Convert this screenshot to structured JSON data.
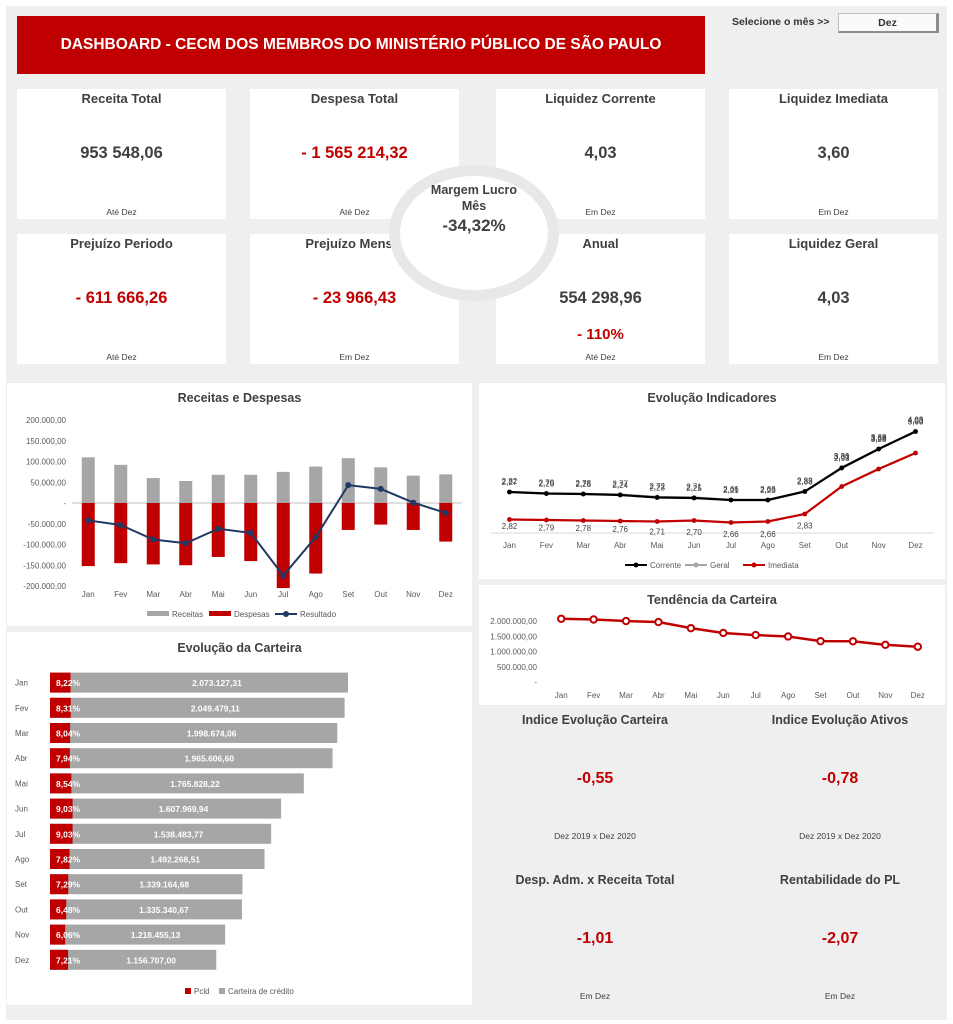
{
  "header": {
    "title": "DASHBOARD - CECM DOS MEMBROS DO MINISTÉRIO PÚBLICO DE SÃO PAULO",
    "month_label": "Selecione o mês >>",
    "month_value": "Dez"
  },
  "kpis": {
    "receita_total": {
      "title": "Receita Total",
      "value": "953 548,06",
      "sub": "Até Dez"
    },
    "despesa_total": {
      "title": "Despesa Total",
      "value": "- 1 565 214,32",
      "sub": "Até Dez"
    },
    "liquidez_corrente": {
      "title": "Liquidez Corrente",
      "value": "4,03",
      "sub": "Em Dez"
    },
    "liquidez_imediata": {
      "title": "Liquidez Imediata",
      "value": "3,60",
      "sub": "Em Dez"
    },
    "prejuizo_periodo": {
      "title": "Prejuízo Periodo",
      "value": "-  611 666,26",
      "sub": "Até Dez"
    },
    "prejuizo_mensal": {
      "title": "Prejuízo Mensal",
      "value": "-  23 966,43",
      "sub": "Em Dez"
    },
    "anual": {
      "title": "Anual",
      "value": "554 298,96",
      "extra": "- 110%",
      "sub": "Até Dez"
    },
    "liquidez_geral": {
      "title": "Liquidez Geral",
      "value": "4,03",
      "sub": "Em Dez"
    },
    "margem": {
      "title_line1": "Margem Lucro",
      "title_line2": "Mês",
      "value": "-34,32%"
    }
  },
  "indices": {
    "carteira": {
      "title": "Indice Evolução Carteira",
      "value": "-0,55",
      "sub": "Dez 2019 x Dez 2020"
    },
    "ativos": {
      "title": "Indice Evolução Ativos",
      "value": "-0,78",
      "sub": "Dez 2019 x Dez 2020"
    },
    "desp_adm": {
      "title": "Desp. Adm. x Receita Total",
      "value": "-1,01",
      "sub": "Em Dez"
    },
    "rentabilidade": {
      "title": "Rentabilidade do PL",
      "value": "-2,07",
      "sub": "Em Dez"
    }
  },
  "colors": {
    "red": "#c00000",
    "gray": "#a6a6a6",
    "navy": "#1f3864",
    "black": "#000000"
  },
  "chart_data": [
    {
      "type": "bar",
      "title": "Receitas e Despesas",
      "categories": [
        "Jan",
        "Fev",
        "Mar",
        "Abr",
        "Mai",
        "Jun",
        "Jul",
        "Ago",
        "Set",
        "Out",
        "Nov",
        "Dez"
      ],
      "y_ticks": [
        "200.000,00",
        "150.000,00",
        "100.000,00",
        "50.000,00",
        "-",
        "-50.000,00",
        "-100.000,00",
        "-150.000,00",
        "-200.000,00"
      ],
      "ylim": [
        -200000,
        200000
      ],
      "series": [
        {
          "name": "Receitas",
          "values": [
            110000,
            92000,
            60000,
            53000,
            68000,
            68000,
            75000,
            88000,
            108000,
            86000,
            66000,
            69000
          ]
        },
        {
          "name": "Despesas",
          "values": [
            -152000,
            -145000,
            -148000,
            -150000,
            -130000,
            -140000,
            -205000,
            -170000,
            -65000,
            -52000,
            -65000,
            -93000
          ]
        },
        {
          "name": "Resultado",
          "values": [
            -42000,
            -53000,
            -88000,
            -97000,
            -62000,
            -72000,
            -175000,
            -82000,
            43000,
            34000,
            1000,
            -24000
          ]
        }
      ],
      "legend": "bottom"
    },
    {
      "type": "line",
      "title": "Evolução Indicadores",
      "categories": [
        "Jan",
        "Fev",
        "Mar",
        "Abr",
        "Mai",
        "Jun",
        "Jul",
        "Ago",
        "Set",
        "Out",
        "Nov",
        "Dez"
      ],
      "series": [
        {
          "name": "Corrente",
          "values": [
            2.82,
            2.79,
            2.78,
            2.76,
            2.71,
            2.7,
            2.66,
            2.66,
            2.83,
            3.3,
            3.68,
            4.03
          ],
          "labels": [
            "2,82",
            "2,79",
            "2,78",
            "2,76",
            "2,71",
            "2,70",
            "2,66",
            "2,66",
            "2,83",
            "3,30",
            "3,68",
            "4,03"
          ]
        },
        {
          "name": "Geral",
          "values": [
            2.82,
            2.79,
            2.78,
            2.77,
            2.72,
            2.71,
            2.66,
            2.66,
            2.83,
            3.31,
            3.68,
            4.03
          ],
          "labels": [
            "2,82",
            "2,79",
            "2,78",
            "2,77",
            "2,72",
            "2,71",
            "2,66",
            "2,66",
            "2,83",
            "3,31",
            "3,68",
            "4,03"
          ]
        },
        {
          "name": "Imediata",
          "values": [
            2.27,
            2.26,
            2.25,
            2.24,
            2.23,
            2.25,
            2.21,
            2.23,
            2.38,
            2.93,
            3.28,
            3.6
          ],
          "labels": [
            "2,27",
            "2,26",
            "2,25",
            "2,24",
            "2,23",
            "2,25",
            "2,21",
            "2,23",
            "2,38",
            "2,93",
            "3,28",
            "3,60"
          ]
        }
      ],
      "legend": "bottom"
    },
    {
      "type": "line",
      "title": "Tendência da Carteira",
      "categories": [
        "Jan",
        "Fev",
        "Mar",
        "Abr",
        "Mai",
        "Jun",
        "Jul",
        "Ago",
        "Set",
        "Out",
        "Nov",
        "Dez"
      ],
      "y_ticks": [
        "2.000.000,00",
        "1.500.000,00",
        "1.000.000,00",
        "500.000,00",
        "-"
      ],
      "ylim": [
        0,
        2000000
      ],
      "series": [
        {
          "name": "Carteira",
          "values": [
            2073127.31,
            2049479.11,
            1998674.06,
            1965606.6,
            1765828.22,
            1607969.94,
            1538483.77,
            1492268.51,
            1339164.68,
            1335340.67,
            1218455.13,
            1156707.0
          ]
        }
      ]
    },
    {
      "type": "bar",
      "title": "Evolução da Carteira",
      "categories": [
        "Jan",
        "Fev",
        "Mar",
        "Abr",
        "Mai",
        "Jun",
        "Jul",
        "Ago",
        "Set",
        "Out",
        "Nov",
        "Dez"
      ],
      "series": [
        {
          "name": "Pcld",
          "values": [
            8.22,
            8.31,
            8.04,
            7.94,
            8.54,
            9.03,
            9.03,
            7.82,
            7.29,
            6.48,
            6.06,
            7.21
          ],
          "labels": [
            "8,22%",
            "8,31%",
            "8,04%",
            "7,94%",
            "8,54%",
            "9,03%",
            "9,03%",
            "7,82%",
            "7,29%",
            "6,48%",
            "6,06%",
            "7,21%"
          ]
        },
        {
          "name": "Carteira de crédito",
          "values": [
            2073127.31,
            2049479.11,
            1998674.06,
            1965606.6,
            1765828.22,
            1607969.94,
            1538483.77,
            1492268.51,
            1339164.68,
            1335340.67,
            1218455.13,
            1156707.0
          ],
          "labels": [
            "2.073.127,31",
            "2.049.479,11",
            "1.998.674,06",
            "1.965.606,60",
            "1.765.828,22",
            "1.607.969,94",
            "1.538.483,77",
            "1.492.268,51",
            "1.339.164,68",
            "1.335.340,67",
            "1.218.455,13",
            "1.156.707,00"
          ]
        }
      ],
      "legend": "bottom"
    }
  ]
}
